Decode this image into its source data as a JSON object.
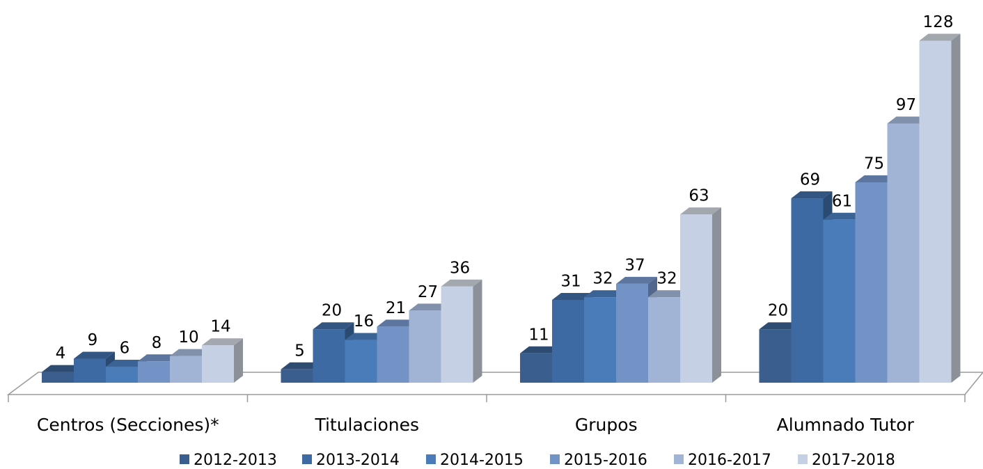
{
  "chart_data": {
    "type": "bar3d",
    "categories": [
      "Centros (Secciones)*",
      "Titulaciones",
      "Grupos",
      "Alumnado Tutor"
    ],
    "series": [
      {
        "name": "2012-2013",
        "color": "#3a5e8e",
        "values": [
          4,
          5,
          11,
          20
        ]
      },
      {
        "name": "2013-2014",
        "color": "#3e6aa3",
        "values": [
          9,
          20,
          31,
          69
        ]
      },
      {
        "name": "2014-2015",
        "color": "#4a7cba",
        "values": [
          6,
          16,
          32,
          61
        ]
      },
      {
        "name": "2015-2016",
        "color": "#7393c7",
        "values": [
          8,
          21,
          37,
          75
        ]
      },
      {
        "name": "2016-2017",
        "color": "#a1b4d6",
        "values": [
          10,
          27,
          32,
          97
        ]
      },
      {
        "name": "2017-2018",
        "color": "#c5d0e4",
        "values": [
          14,
          36,
          63,
          128
        ]
      }
    ],
    "legend": "bottom"
  }
}
